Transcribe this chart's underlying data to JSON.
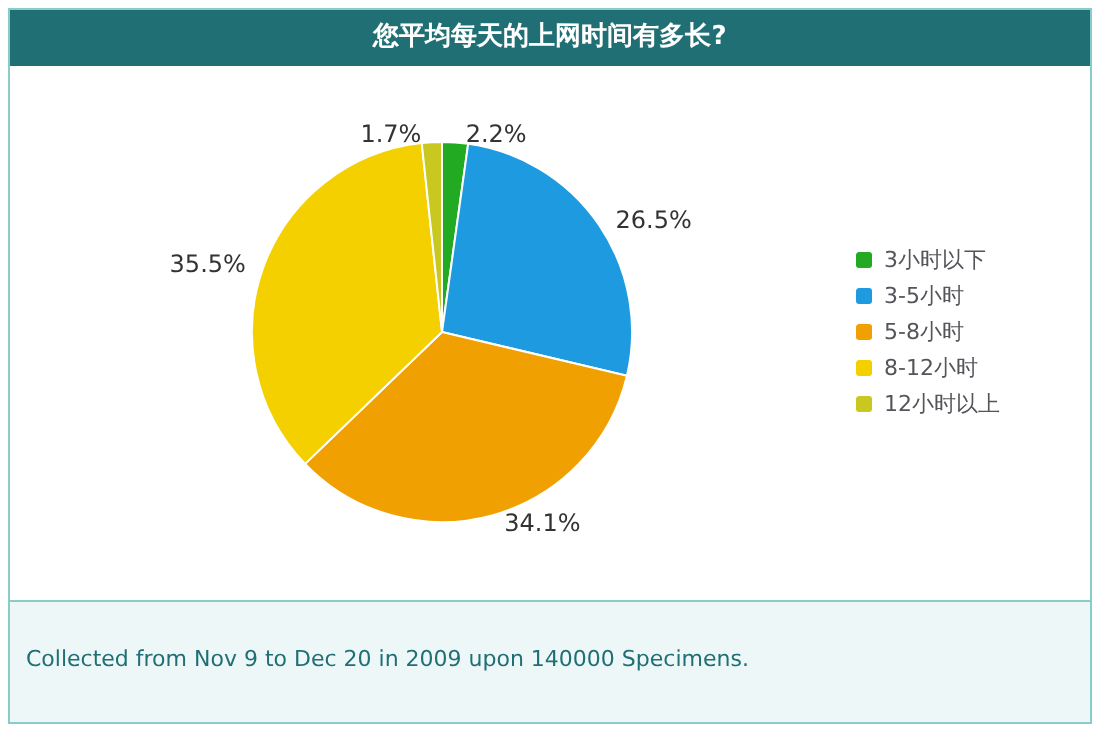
{
  "chart_data": {
    "type": "pie",
    "title": "您平均每天的上网时间有多长?",
    "categories": [
      "3小时以下",
      "3-5小时",
      "5-8小时",
      "8-12小时",
      "12小时以上"
    ],
    "values": [
      2.2,
      26.5,
      34.1,
      35.5,
      1.7
    ],
    "colors": [
      "#22aa22",
      "#1e9be0",
      "#f0a000",
      "#f5d000",
      "#c8c820"
    ],
    "value_labels": [
      "2.2%",
      "26.5%",
      "34.1%",
      "35.5%",
      "1.7%"
    ],
    "legend": "right",
    "annotations": [
      "Collected from Nov 9 to Dec 20 in 2009 upon 140000 Specimens."
    ]
  }
}
